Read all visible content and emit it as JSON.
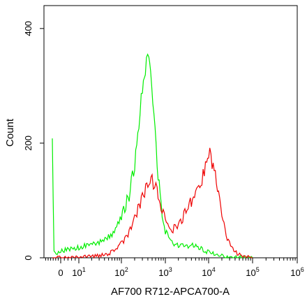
{
  "chart_data": {
    "type": "area",
    "xlabel": "AF700 R712-APCA700-A",
    "ylabel": "Count",
    "xscale": "biexponential",
    "ylim": [
      0,
      440
    ],
    "grid": false,
    "legend": "none",
    "y_ticks": [
      {
        "value": 0,
        "label": "0"
      },
      {
        "value": 200,
        "label": "200"
      },
      {
        "value": 400,
        "label": "400"
      }
    ],
    "x_ticks": [
      {
        "value": 0,
        "base": "0",
        "exp": ""
      },
      {
        "value": 10,
        "base": "10",
        "exp": "1"
      },
      {
        "value": 100,
        "base": "10",
        "exp": "2"
      },
      {
        "value": 1000,
        "base": "10",
        "exp": "3"
      },
      {
        "value": 10000,
        "base": "10",
        "exp": "4"
      },
      {
        "value": 100000,
        "base": "10",
        "exp": "5"
      },
      {
        "value": 1000000,
        "base": "10",
        "exp": "6"
      }
    ],
    "series": [
      {
        "color": "#00ee00",
        "points": [
          [
            -50,
            200
          ],
          [
            -40,
            10
          ],
          [
            -20,
            8
          ],
          [
            0,
            12
          ],
          [
            10,
            18
          ],
          [
            30,
            26
          ],
          [
            60,
            40
          ],
          [
            100,
            70
          ],
          [
            150,
            110
          ],
          [
            200,
            160
          ],
          [
            250,
            230
          ],
          [
            300,
            300
          ],
          [
            350,
            330
          ],
          [
            420,
            355
          ],
          [
            460,
            315
          ],
          [
            550,
            250
          ],
          [
            650,
            160
          ],
          [
            800,
            90
          ],
          [
            1000,
            45
          ],
          [
            1500,
            25
          ],
          [
            2000,
            22
          ],
          [
            3000,
            20
          ],
          [
            4000,
            22
          ],
          [
            6000,
            18
          ],
          [
            8000,
            12
          ],
          [
            10000,
            10
          ],
          [
            15000,
            5
          ],
          [
            25000,
            2
          ],
          [
            50000,
            1
          ],
          [
            100000,
            0
          ]
        ]
      },
      {
        "color": "#ee0000",
        "points": [
          [
            -50,
            0
          ],
          [
            0,
            0
          ],
          [
            20,
            2
          ],
          [
            40,
            5
          ],
          [
            60,
            10
          ],
          [
            80,
            18
          ],
          [
            100,
            25
          ],
          [
            150,
            45
          ],
          [
            200,
            70
          ],
          [
            300,
            105
          ],
          [
            400,
            130
          ],
          [
            500,
            135
          ],
          [
            650,
            120
          ],
          [
            800,
            90
          ],
          [
            1000,
            65
          ],
          [
            1200,
            55
          ],
          [
            1500,
            50
          ],
          [
            2000,
            58
          ],
          [
            3000,
            80
          ],
          [
            4000,
            100
          ],
          [
            5000,
            115
          ],
          [
            7000,
            135
          ],
          [
            9000,
            175
          ],
          [
            10000,
            185
          ],
          [
            12000,
            165
          ],
          [
            15000,
            130
          ],
          [
            20000,
            80
          ],
          [
            25000,
            35
          ],
          [
            40000,
            10
          ],
          [
            60000,
            3
          ],
          [
            100000,
            0
          ]
        ]
      }
    ]
  }
}
